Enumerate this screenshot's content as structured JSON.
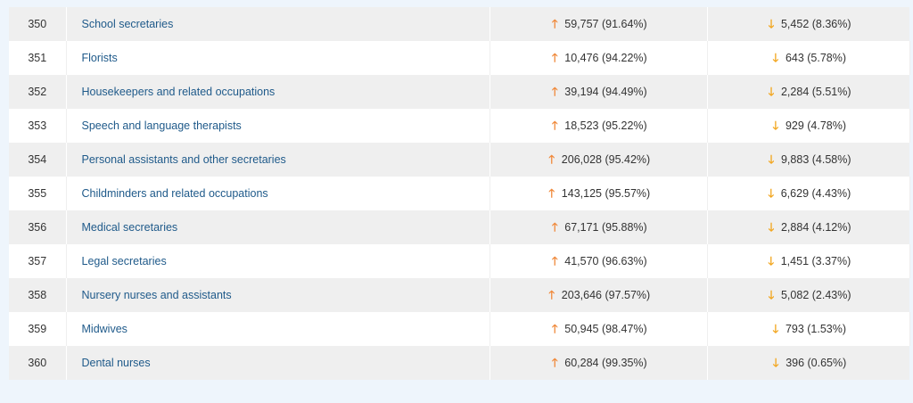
{
  "colors": {
    "up_arrow": "#f08a3c",
    "down_arrow": "#f2a61f",
    "link": "#1f5a8a"
  },
  "rows": [
    {
      "rank": "350",
      "occupation": "School secretaries",
      "a": "59,757 (91.64%)",
      "b": "5,452 (8.36%)"
    },
    {
      "rank": "351",
      "occupation": "Florists",
      "a": "10,476 (94.22%)",
      "b": "643 (5.78%)"
    },
    {
      "rank": "352",
      "occupation": "Housekeepers and related occupations",
      "a": "39,194 (94.49%)",
      "b": "2,284 (5.51%)"
    },
    {
      "rank": "353",
      "occupation": "Speech and language therapists",
      "a": "18,523 (95.22%)",
      "b": "929 (4.78%)"
    },
    {
      "rank": "354",
      "occupation": "Personal assistants and other secretaries",
      "a": "206,028 (95.42%)",
      "b": "9,883 (4.58%)"
    },
    {
      "rank": "355",
      "occupation": "Childminders and related occupations",
      "a": "143,125 (95.57%)",
      "b": "6,629 (4.43%)"
    },
    {
      "rank": "356",
      "occupation": "Medical secretaries",
      "a": "67,171 (95.88%)",
      "b": "2,884 (4.12%)"
    },
    {
      "rank": "357",
      "occupation": "Legal secretaries",
      "a": "41,570 (96.63%)",
      "b": "1,451 (3.37%)"
    },
    {
      "rank": "358",
      "occupation": "Nursery nurses and assistants",
      "a": "203,646 (97.57%)",
      "b": "5,082 (2.43%)"
    },
    {
      "rank": "359",
      "occupation": "Midwives",
      "a": "50,945 (98.47%)",
      "b": "793 (1.53%)"
    },
    {
      "rank": "360",
      "occupation": "Dental nurses",
      "a": "60,284 (99.35%)",
      "b": "396 (0.65%)"
    }
  ]
}
